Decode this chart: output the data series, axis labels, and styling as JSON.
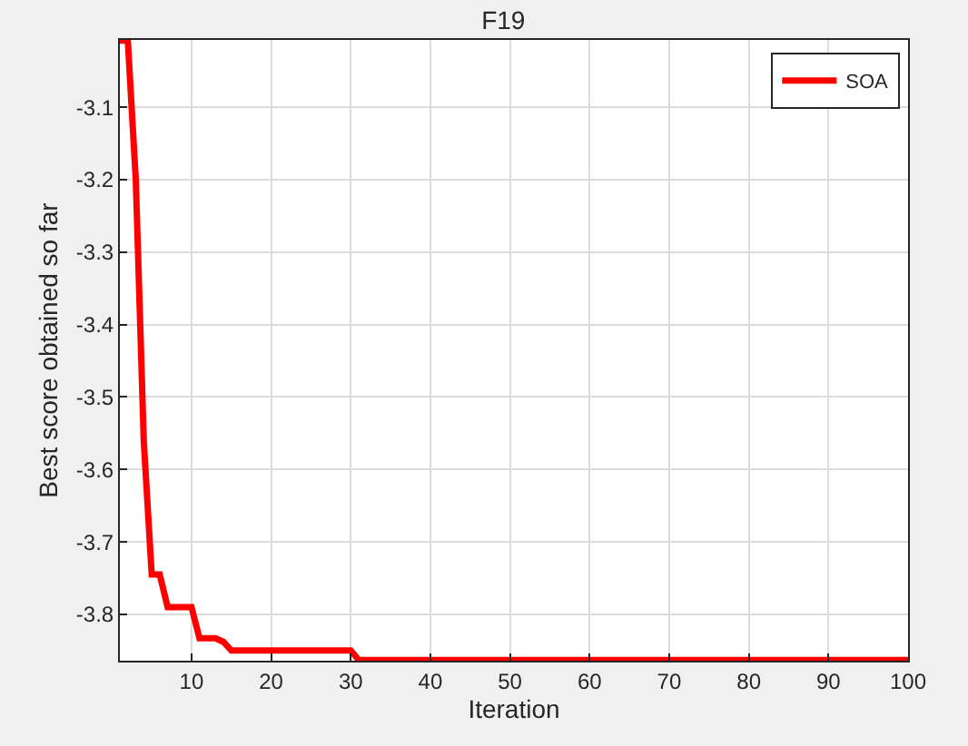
{
  "chart_data": {
    "type": "line",
    "title": "F19",
    "xlabel": "Iteration",
    "ylabel": "Best score obtained so far",
    "x": [
      1,
      2,
      3,
      4,
      5,
      6,
      7,
      8,
      9,
      10,
      11,
      12,
      13,
      14,
      15,
      20,
      25,
      30,
      31,
      40,
      50,
      60,
      70,
      80,
      90,
      100
    ],
    "series": [
      {
        "name": "SOA",
        "color": "#ff0000",
        "values": [
          -3.008,
          -3.008,
          -3.2,
          -3.56,
          -3.745,
          -3.745,
          -3.79,
          -3.79,
          -3.79,
          -3.79,
          -3.833,
          -3.833,
          -3.833,
          -3.838,
          -3.85,
          -3.85,
          -3.85,
          -3.85,
          -3.863,
          -3.863,
          -3.863,
          -3.863,
          -3.863,
          -3.863,
          -3.863,
          -3.863
        ]
      }
    ],
    "xlim": [
      1,
      100
    ],
    "xticks": [
      10,
      20,
      30,
      40,
      50,
      60,
      70,
      80,
      90,
      100
    ],
    "ylim": [
      -3.864,
      -3.007
    ],
    "yticks": [
      -3.8,
      -3.7,
      -3.6,
      -3.5,
      -3.4,
      -3.3,
      -3.2,
      -3.1
    ],
    "grid": true,
    "legend": "top right",
    "marker": "none",
    "line_style": "solid"
  }
}
